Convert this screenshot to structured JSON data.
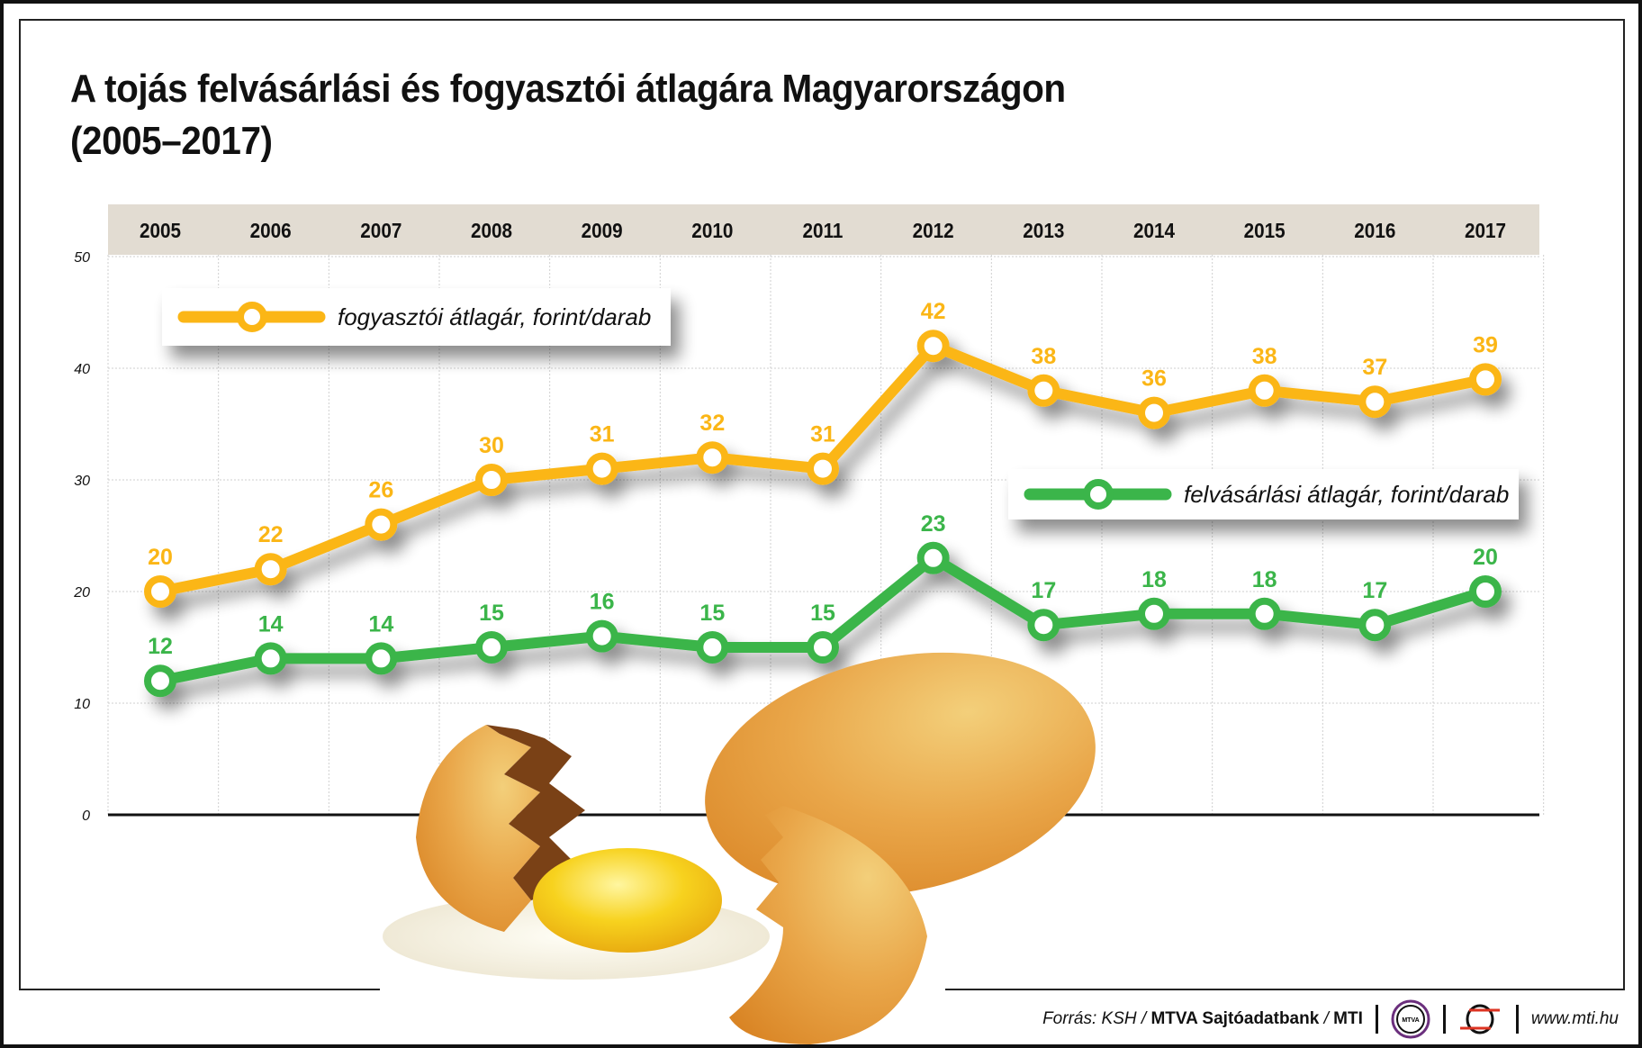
{
  "title_line1": "A tojás felvásárlási és fogyasztói átlagára Magyarországon",
  "title_line2": "(2005–2017)",
  "chart_data": {
    "type": "line",
    "title": "A tojás felvásárlási és fogyasztói átlagára Magyarországon (2005–2017)",
    "categories": [
      "2005",
      "2006",
      "2007",
      "2008",
      "2009",
      "2010",
      "2011",
      "2012",
      "2013",
      "2014",
      "2015",
      "2016",
      "2017"
    ],
    "yticks": [
      "0",
      "10",
      "20",
      "30",
      "40",
      "50"
    ],
    "ylim": [
      0,
      50
    ],
    "grid": true,
    "series": [
      {
        "name": "fogyasztói átlagár, forint/darab",
        "color": "#fbb616",
        "values": [
          20,
          22,
          26,
          30,
          31,
          32,
          31,
          42,
          38,
          36,
          38,
          37,
          39
        ]
      },
      {
        "name": "felvásárlási átlagár, forint/darab",
        "color": "#3bb54a",
        "values": [
          12,
          14,
          14,
          15,
          16,
          15,
          15,
          23,
          17,
          18,
          18,
          17,
          20
        ]
      }
    ]
  },
  "footer": {
    "source_prefix": "Forrás: KSH / ",
    "source_bold": "MTVA Sajtóadatbank",
    "source_mid": " / ",
    "source_mti": "MTI",
    "logo_mtva": "MTVA",
    "website": "www.mti.hu"
  },
  "colors": {
    "header_band": "#e2dcd2",
    "grid": "#cfcfcf"
  }
}
